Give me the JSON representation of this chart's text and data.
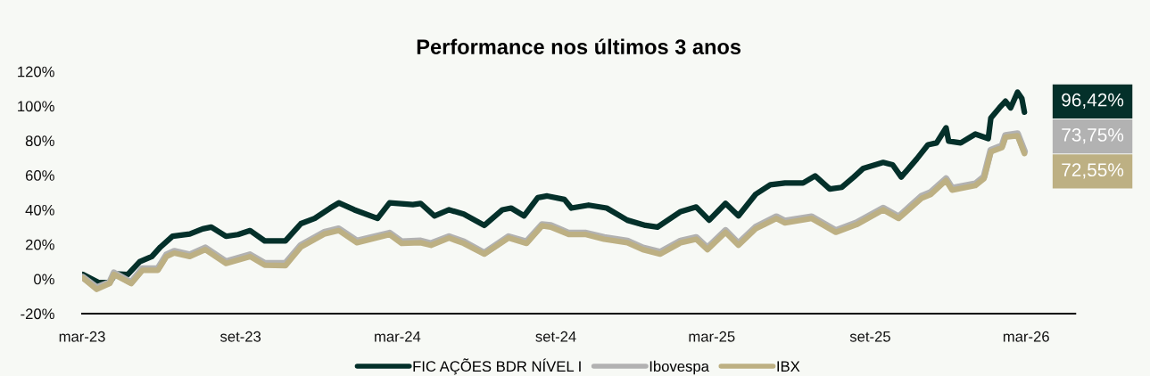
{
  "chart_data": {
    "type": "line",
    "title": "Performance nos últimos 3 anos",
    "ylim": [
      -20,
      120
    ],
    "yticks": [
      {
        "value": -20,
        "label": "-20%"
      },
      {
        "value": 0,
        "label": "0%"
      },
      {
        "value": 20,
        "label": "20%"
      },
      {
        "value": 40,
        "label": "40%"
      },
      {
        "value": 60,
        "label": "60%"
      },
      {
        "value": 80,
        "label": "80%"
      },
      {
        "value": 100,
        "label": "100%"
      },
      {
        "value": 120,
        "label": "120%"
      }
    ],
    "xlim": [
      "2023-03-01",
      "2026-04-27"
    ],
    "xticks": [
      {
        "value": "2023-03-01",
        "label": "mar-23"
      },
      {
        "value": "2023-09-01",
        "label": "set-23"
      },
      {
        "value": "2024-03-01",
        "label": "mar-24"
      },
      {
        "value": "2024-09-01",
        "label": "set-24"
      },
      {
        "value": "2025-03-01",
        "label": "mar-25"
      },
      {
        "value": "2025-09-01",
        "label": "set-25"
      },
      {
        "value": "2026-03-01",
        "label": "mar-26"
      }
    ],
    "grid": false,
    "legend": "bottom",
    "line_style": "solid",
    "marker": "none",
    "annotations": [
      "96,42%",
      "73,75%",
      "72,55%"
    ],
    "series": [
      {
        "name": "FIC AÇÕES BDR NÍVEL I",
        "color": "#04302a",
        "x": [
          "2023-03-02",
          "2023-03-20",
          "2023-04-02",
          "2023-04-09",
          "2023-04-23",
          "2023-05-07",
          "2023-05-21",
          "2023-05-31",
          "2023-06-14",
          "2023-07-04",
          "2023-07-19",
          "2023-07-29",
          "2023-08-15",
          "2023-08-29",
          "2023-09-12",
          "2023-09-29",
          "2023-10-23",
          "2023-11-10",
          "2023-11-26",
          "2023-12-14",
          "2023-12-24",
          "2024-01-11",
          "2024-02-07",
          "2024-02-21",
          "2024-03-19",
          "2024-03-28",
          "2024-04-13",
          "2024-04-30",
          "2024-05-17",
          "2024-06-10",
          "2024-07-01",
          "2024-07-11",
          "2024-07-26",
          "2024-08-11",
          "2024-08-22",
          "2024-09-11",
          "2024-09-19",
          "2024-10-09",
          "2024-10-30",
          "2024-11-23",
          "2024-12-14",
          "2024-12-28",
          "2025-01-24",
          "2025-02-11",
          "2025-02-26",
          "2025-03-17",
          "2025-04-01",
          "2025-04-21",
          "2025-05-08",
          "2025-05-25",
          "2025-06-15",
          "2025-06-29",
          "2025-07-16",
          "2025-07-30",
          "2025-08-13",
          "2025-08-24",
          "2025-09-16",
          "2025-09-27",
          "2025-10-07",
          "2025-10-25",
          "2025-11-07",
          "2025-11-17",
          "2025-11-28",
          "2025-12-01",
          "2025-12-15",
          "2026-01-01",
          "2026-01-16",
          "2026-01-19",
          "2026-01-29",
          "2026-02-05",
          "2026-02-11",
          "2026-02-19",
          "2026-02-24",
          "2026-02-27"
        ],
        "values": [
          2.6,
          -2,
          -2,
          3,
          2.6,
          10,
          13,
          18.5,
          24.7,
          26,
          29,
          30,
          24.7,
          25.7,
          28,
          22,
          22,
          32,
          35,
          41,
          44,
          40,
          35,
          44,
          43,
          43.7,
          36.5,
          40,
          37.5,
          31,
          40,
          41,
          36.5,
          47,
          48,
          46,
          41,
          42.7,
          41,
          34,
          31,
          30,
          39,
          41.6,
          34,
          43.7,
          36.5,
          49,
          54.5,
          55.5,
          55.5,
          59.6,
          52,
          53,
          59,
          64,
          67.4,
          66,
          59,
          69.4,
          77.6,
          78.7,
          87.4,
          79.7,
          78.7,
          83.8,
          81.2,
          93,
          99,
          102.8,
          99,
          108,
          104.4,
          96.42
        ]
      },
      {
        "name": "Ibovespa",
        "color": "#b2b2b2",
        "x": [
          "2023-03-02",
          "2023-03-18",
          "2023-04-02",
          "2023-04-07",
          "2023-04-27",
          "2023-05-10",
          "2023-05-28",
          "2023-06-07",
          "2023-06-16",
          "2023-07-04",
          "2023-07-22",
          "2023-08-15",
          "2023-09-12",
          "2023-09-29",
          "2023-10-23",
          "2023-11-10",
          "2023-12-07",
          "2023-12-24",
          "2024-01-14",
          "2024-02-21",
          "2024-03-06",
          "2024-03-28",
          "2024-04-09",
          "2024-04-30",
          "2024-05-17",
          "2024-06-10",
          "2024-07-08",
          "2024-07-29",
          "2024-08-16",
          "2024-08-26",
          "2024-09-16",
          "2024-10-06",
          "2024-10-27",
          "2024-11-23",
          "2024-12-11",
          "2024-12-31",
          "2025-01-24",
          "2025-02-11",
          "2025-02-24",
          "2025-03-17",
          "2025-04-01",
          "2025-04-21",
          "2025-05-15",
          "2025-05-25",
          "2025-06-25",
          "2025-07-23",
          "2025-08-16",
          "2025-09-16",
          "2025-10-04",
          "2025-10-31",
          "2025-11-10",
          "2025-11-28",
          "2025-12-05",
          "2026-01-01",
          "2026-01-11",
          "2026-01-19",
          "2026-02-01",
          "2026-02-05",
          "2026-02-19",
          "2026-02-27"
        ],
        "values": [
          1,
          -5,
          -2,
          3.5,
          -2,
          6,
          6,
          14,
          16,
          14,
          18,
          10,
          14,
          9,
          9,
          19.5,
          27,
          29,
          22,
          26.5,
          21.5,
          22,
          20.5,
          24.5,
          21.5,
          15,
          24.5,
          21.5,
          31.5,
          31,
          26.5,
          26.5,
          24,
          22,
          18,
          15.5,
          22,
          24,
          18,
          28,
          20.5,
          30,
          36,
          33.5,
          36,
          28,
          32.5,
          41,
          36,
          48,
          50,
          58,
          52.5,
          55,
          59,
          74.5,
          77,
          83,
          84,
          73.75
        ]
      },
      {
        "name": "IBX",
        "color": "#bdb083",
        "x": [
          "2023-03-02",
          "2023-03-18",
          "2023-04-02",
          "2023-04-07",
          "2023-04-27",
          "2023-05-10",
          "2023-05-28",
          "2023-06-07",
          "2023-06-16",
          "2023-07-04",
          "2023-07-22",
          "2023-08-15",
          "2023-09-12",
          "2023-09-29",
          "2023-10-23",
          "2023-11-10",
          "2023-12-07",
          "2023-12-24",
          "2024-01-14",
          "2024-02-21",
          "2024-03-06",
          "2024-03-28",
          "2024-04-09",
          "2024-04-30",
          "2024-05-17",
          "2024-06-10",
          "2024-07-08",
          "2024-07-29",
          "2024-08-16",
          "2024-08-26",
          "2024-09-16",
          "2024-10-06",
          "2024-10-27",
          "2024-11-23",
          "2024-12-11",
          "2024-12-31",
          "2025-01-24",
          "2025-02-11",
          "2025-02-24",
          "2025-03-17",
          "2025-04-01",
          "2025-04-21",
          "2025-05-15",
          "2025-05-25",
          "2025-06-25",
          "2025-07-23",
          "2025-08-16",
          "2025-09-16",
          "2025-10-04",
          "2025-10-31",
          "2025-11-10",
          "2025-11-28",
          "2025-12-05",
          "2026-01-01",
          "2026-01-11",
          "2026-01-19",
          "2026-02-01",
          "2026-02-05",
          "2026-02-19",
          "2026-02-27"
        ],
        "values": [
          0.5,
          -6,
          -2.6,
          2.6,
          -2.6,
          5,
          5,
          13,
          15,
          13,
          17,
          9,
          13,
          8,
          7.7,
          18.5,
          26,
          28,
          21,
          25.7,
          20.6,
          21,
          19.5,
          23.7,
          20.6,
          14.4,
          23.7,
          20.6,
          30.8,
          30,
          25.7,
          25.7,
          23,
          21,
          17,
          14.4,
          21,
          23,
          17,
          27,
          19.5,
          29,
          35,
          32.4,
          35,
          27,
          31.4,
          40,
          35,
          46.8,
          48.8,
          57,
          51.4,
          54,
          58,
          73.5,
          76,
          82,
          82.8,
          72.55
        ]
      }
    ]
  }
}
